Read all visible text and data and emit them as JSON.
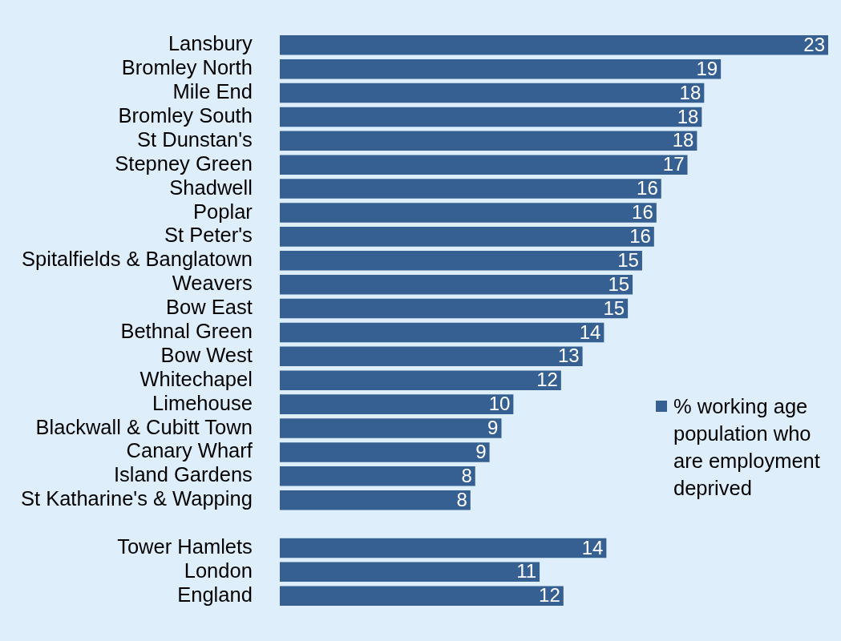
{
  "chart_data": {
    "type": "bar",
    "orientation": "horizontal",
    "categories": [
      "Lansbury",
      "Bromley North",
      "Mile End",
      "Bromley South",
      "St Dunstan's",
      "Stepney Green",
      "Shadwell",
      "Poplar",
      "St Peter's",
      "Spitalfields & Banglatown",
      "Weavers",
      "Bow East",
      "Bethnal Green",
      "Bow West",
      "Whitechapel",
      "Limehouse",
      "Blackwall & Cubitt Town",
      "Canary Wharf",
      "Island Gardens",
      "St Katharine's & Wapping",
      null,
      "Tower Hamlets",
      "London",
      "England"
    ],
    "series": [
      {
        "name": "% working age population who are employment deprived",
        "color": "#376092",
        "values": [
          23,
          18.5,
          17.8,
          17.7,
          17.5,
          17.1,
          16.0,
          15.8,
          15.7,
          15.2,
          14.8,
          14.6,
          13.6,
          12.7,
          11.8,
          9.8,
          9.3,
          8.8,
          8.2,
          8.0,
          null,
          13.7,
          10.9,
          11.9
        ],
        "value_labels": [
          "23",
          "19",
          "18",
          "18",
          "18",
          "17",
          "16",
          "16",
          "16",
          "15",
          "15",
          "15",
          "14",
          "13",
          "12",
          "10",
          "9",
          "9",
          "8",
          "8",
          null,
          "14",
          "11",
          "12"
        ]
      }
    ],
    "legend": "right",
    "tick_labels": "y"
  }
}
